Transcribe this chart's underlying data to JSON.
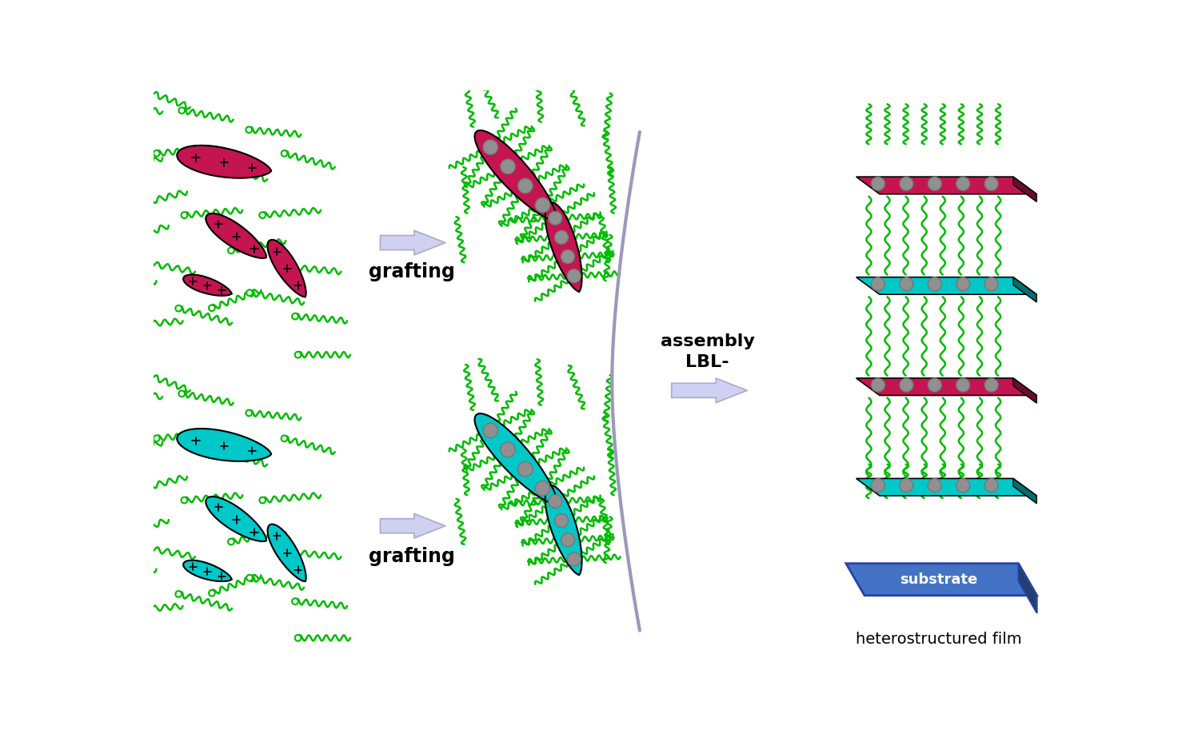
{
  "bg_color": "#ffffff",
  "crimson_color": "#C41551",
  "cyan_color": "#00C8C8",
  "green_color": "#00BB00",
  "gray_dot_color": "#808080",
  "bracket_color": "#9999BB",
  "arrow_color": "#D0D0F0",
  "arrow_edge": "#AAAACC",
  "substrate_color": "#4472C4",
  "substrate_dark": "#2244AA",
  "label_grafting": "grafting",
  "label_lbl1": "LBL-",
  "label_lbl2": "assembly",
  "label_hetero": "heterostructured film",
  "label_substrate": "substrate"
}
